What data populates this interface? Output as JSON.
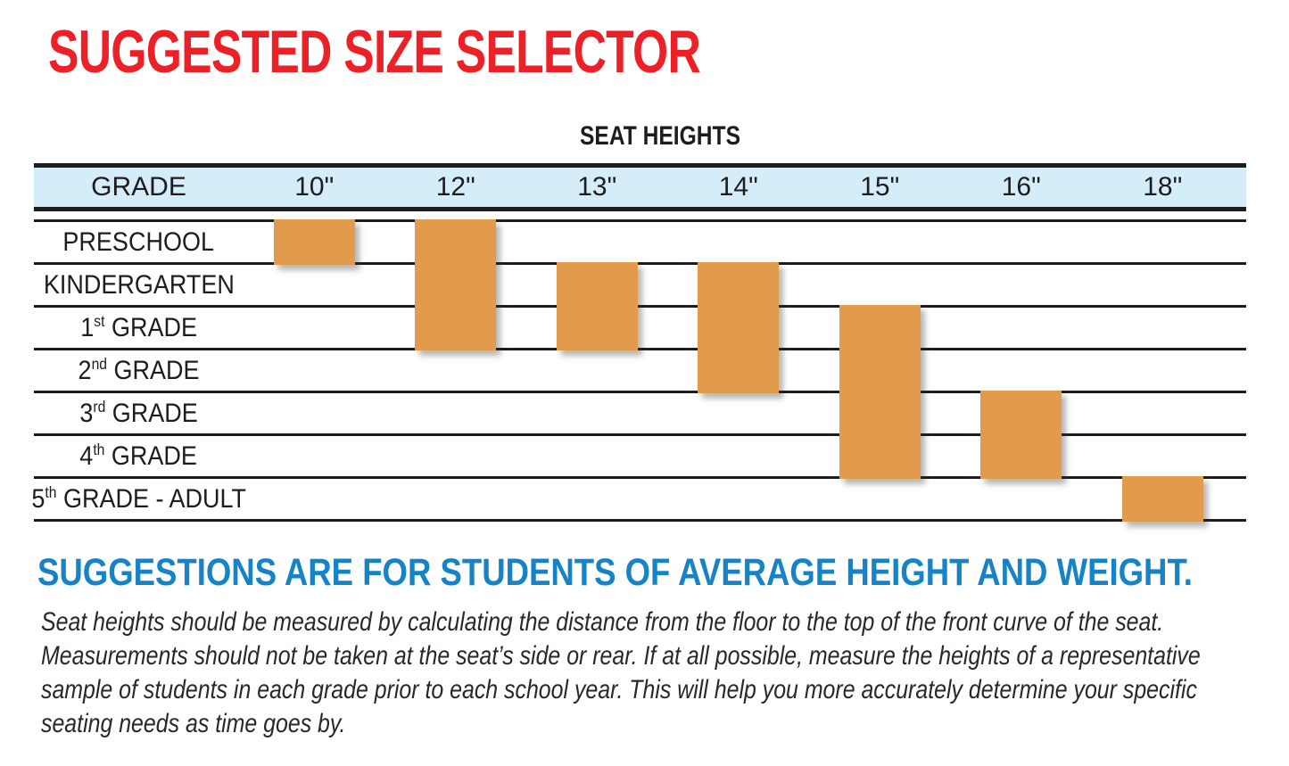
{
  "title": "SUGGESTED SIZE SELECTOR",
  "table": {
    "seat_heights_label": "SEAT HEIGHTS",
    "header": [
      "GRADE",
      "10\"",
      "12\"",
      "13\"",
      "14\"",
      "15\"",
      "16\"",
      "18\""
    ],
    "grades": [
      {
        "base": "PRESCHOOL",
        "sup": "",
        "rest": ""
      },
      {
        "base": "KINDERGARTEN",
        "sup": "",
        "rest": ""
      },
      {
        "base": "1",
        "sup": "st",
        "rest": " GRADE"
      },
      {
        "base": "2",
        "sup": "nd",
        "rest": " GRADE"
      },
      {
        "base": "3",
        "sup": "rd",
        "rest": " GRADE"
      },
      {
        "base": "4",
        "sup": "th",
        "rest": " GRADE"
      },
      {
        "base": "5",
        "sup": "th",
        "rest": " GRADE - ADULT"
      }
    ]
  },
  "chart_data": {
    "type": "table",
    "title": "SUGGESTED SIZE SELECTOR",
    "subtitle": "SEAT HEIGHTS",
    "columns": [
      "GRADE",
      "10\"",
      "12\"",
      "13\"",
      "14\"",
      "15\"",
      "16\"",
      "18\""
    ],
    "rows": [
      "PRESCHOOL",
      "KINDERGARTEN",
      "1st GRADE",
      "2nd GRADE",
      "3rd GRADE",
      "4th GRADE",
      "5th GRADE - ADULT"
    ],
    "ranges": [
      {
        "seat_height": "10\"",
        "col": 0,
        "row_start": 0,
        "row_end": 0,
        "grades": [
          "PRESCHOOL"
        ]
      },
      {
        "seat_height": "12\"",
        "col": 1,
        "row_start": 0,
        "row_end": 2,
        "grades": [
          "PRESCHOOL",
          "KINDERGARTEN",
          "1st GRADE"
        ]
      },
      {
        "seat_height": "13\"",
        "col": 2,
        "row_start": 1,
        "row_end": 2,
        "grades": [
          "KINDERGARTEN",
          "1st GRADE"
        ]
      },
      {
        "seat_height": "14\"",
        "col": 3,
        "row_start": 1,
        "row_end": 3,
        "grades": [
          "KINDERGARTEN",
          "1st GRADE",
          "2nd GRADE"
        ]
      },
      {
        "seat_height": "15\"",
        "col": 4,
        "row_start": 2,
        "row_end": 5,
        "grades": [
          "1st GRADE",
          "2nd GRADE",
          "3rd GRADE",
          "4th GRADE"
        ]
      },
      {
        "seat_height": "16\"",
        "col": 5,
        "row_start": 4,
        "row_end": 5,
        "grades": [
          "3rd GRADE",
          "4th GRADE"
        ]
      },
      {
        "seat_height": "18\"",
        "col": 6,
        "row_start": 6,
        "row_end": 6,
        "grades": [
          "5th GRADE - ADULT"
        ]
      }
    ],
    "bar_color": "#E29A4D",
    "header_bg": "#D5EDF9",
    "grid": "on",
    "legend": "none"
  },
  "note": {
    "heading": "SUGGESTIONS ARE FOR STUDENTS OF AVERAGE HEIGHT AND WEIGHT.",
    "lines": [
      "Seat heights should be measured by calculating the distance from the floor to the top of the front curve of the seat.",
      "Measurements should not be taken at the seat’s side or rear.  If at all possible, measure the heights of a representative",
      "sample of students in each grade prior to each school year.  This will help you more accurately determine your specific",
      "seating needs as time goes by."
    ]
  },
  "colors": {
    "title_red": "#EC2027",
    "heading_blue": "#1583C5",
    "header_band_blue": "#D5EDF9",
    "bar_orange": "#E29A4D",
    "line_black": "#1E1C1D"
  }
}
